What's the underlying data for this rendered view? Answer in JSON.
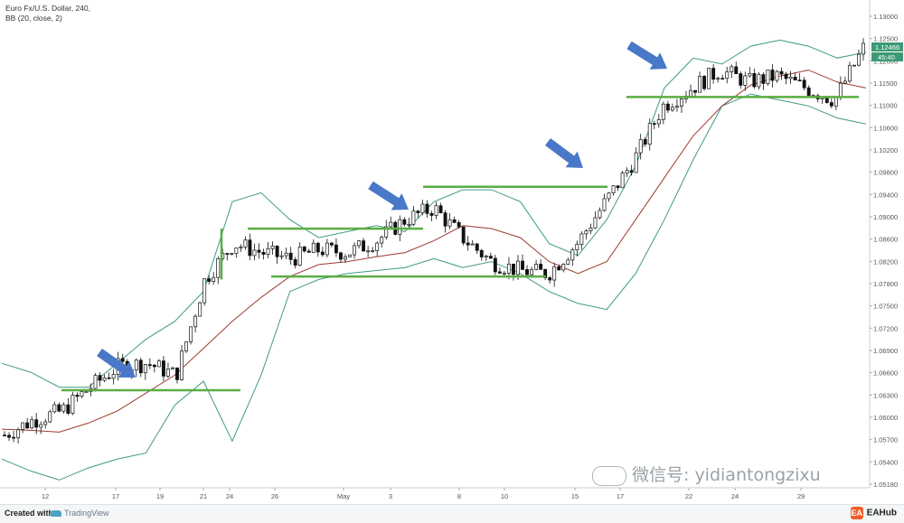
{
  "header": {
    "symbol_line": "Euro Fx/U.S. Dollar, 240,",
    "indicator_line": "BB (20, close, 2)"
  },
  "price_axis": {
    "ticks": [
      "1.13000",
      "1.12500",
      "1.12000",
      "1.11500",
      "1.11000",
      "1.10600",
      "1.10200",
      "1.09800",
      "1.09400",
      "1.09000",
      "1.08600",
      "1.08200",
      "1.07800",
      "1.07500",
      "1.07200",
      "1.06900",
      "1.06600",
      "1.06300",
      "1.06000",
      "1.05700",
      "1.05400",
      "1.05180"
    ],
    "current_price": "1.12466",
    "countdown": "45:40"
  },
  "time_axis": {
    "labels": [
      "12",
      "17",
      "19",
      "21",
      "24",
      "26",
      "May",
      "3",
      "8",
      "10",
      "15",
      "17",
      "22",
      "24",
      "29"
    ]
  },
  "colors": {
    "bands": "#3f9a86",
    "basis": "#9c3b2f",
    "level": "#5aad44",
    "arrow": "#4a78c8",
    "price_tag": "#3d9a74"
  },
  "chart_data": {
    "type": "candlestick",
    "title": "Euro Fx/U.S. Dollar, 240,",
    "indicator": "BB (20, close, 2)",
    "ylim": [
      1.0515,
      1.1315
    ],
    "x_categories": [
      "12",
      "17",
      "19",
      "21",
      "24",
      "26",
      "May",
      "3",
      "8",
      "10",
      "15",
      "17",
      "22",
      "24",
      "29"
    ],
    "middle_band": [
      1.061,
      1.0608,
      1.0605,
      1.062,
      1.064,
      1.067,
      1.07,
      1.0745,
      1.079,
      1.083,
      1.0865,
      1.0885,
      1.089,
      1.0898,
      1.0905,
      1.0925,
      1.095,
      1.0945,
      1.093,
      1.089,
      1.087,
      1.089,
      1.096,
      1.103,
      1.11,
      1.115,
      1.1185,
      1.12,
      1.121,
      1.119,
      1.118
    ],
    "upper_band": [
      1.072,
      1.0705,
      1.068,
      1.068,
      1.072,
      1.076,
      1.079,
      1.084,
      1.099,
      1.1005,
      1.096,
      1.093,
      1.094,
      1.095,
      1.094,
      1.099,
      1.101,
      1.101,
      1.099,
      1.092,
      1.09,
      1.096,
      1.105,
      1.118,
      1.123,
      1.122,
      1.125,
      1.126,
      1.125,
      1.123,
      1.124
    ],
    "lower_band": [
      1.056,
      1.054,
      1.0525,
      1.0545,
      1.056,
      1.057,
      1.065,
      1.069,
      1.059,
      1.07,
      1.084,
      1.086,
      1.087,
      1.0875,
      1.088,
      1.0895,
      1.088,
      1.089,
      1.087,
      1.084,
      1.082,
      1.081,
      1.087,
      1.096,
      1.106,
      1.115,
      1.117,
      1.116,
      1.115,
      1.113,
      1.112
    ],
    "closes": [
      1.06,
      1.0625,
      1.064,
      1.068,
      1.0715,
      1.072,
      1.07,
      1.086,
      1.092,
      1.0905,
      1.0895,
      1.091,
      1.0905,
      1.0925,
      1.096,
      1.098,
      1.093,
      1.089,
      1.0875,
      1.087,
      1.092,
      1.099,
      1.106,
      1.115,
      1.118,
      1.121,
      1.119,
      1.12,
      1.118,
      1.116,
      1.1246
    ],
    "support_resistance_levels": [
      1.0675,
      1.0945,
      1.0865,
      1.1015,
      1.1165
    ],
    "annotations": [
      "arrow",
      "arrow",
      "arrow",
      "arrow"
    ]
  }
}
